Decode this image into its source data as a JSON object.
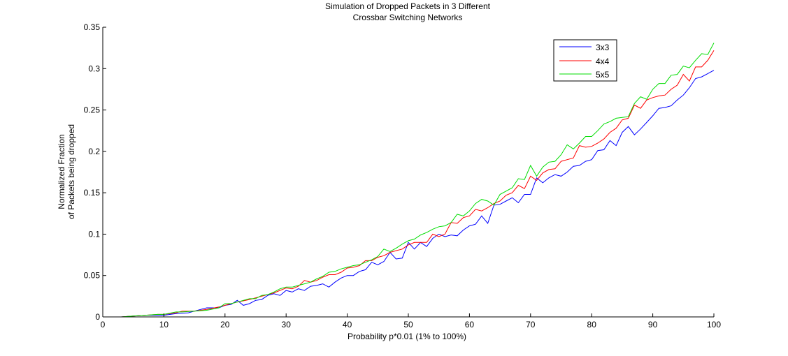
{
  "chart_data": {
    "type": "line",
    "title": "Simulation of Dropped Packets in 3 Different",
    "subtitle": "Crossbar Switching Networks",
    "xlabel": "Probability p*0.01 (1% to 100%)",
    "ylabel_lines": [
      "Normalized Fraction",
      "of Packets being dropped"
    ],
    "xlim": [
      0,
      100
    ],
    "ylim": [
      0,
      0.35
    ],
    "xticks": [
      0,
      10,
      20,
      30,
      40,
      50,
      60,
      70,
      80,
      90,
      100
    ],
    "yticks": [
      0,
      0.05,
      0.1,
      0.15,
      0.2,
      0.25,
      0.3,
      0.35
    ],
    "ytick_labels": [
      "0",
      "0.05",
      "0.1",
      "0.15",
      "0.2",
      "0.25",
      "0.3",
      "0.35"
    ],
    "grid": false,
    "legend_position": "top-right",
    "series": [
      {
        "name": "3x3",
        "color": "#0000ff",
        "points": [
          [
            1,
            0.0
          ],
          [
            3,
            0.0
          ],
          [
            5,
            0.001
          ],
          [
            7,
            0.002
          ],
          [
            8,
            0.002
          ],
          [
            10,
            0.002
          ],
          [
            12,
            0.004
          ],
          [
            14,
            0.005
          ],
          [
            16,
            0.009
          ],
          [
            17,
            0.011
          ],
          [
            19,
            0.011
          ],
          [
            20,
            0.014
          ],
          [
            21,
            0.015
          ],
          [
            22,
            0.02
          ],
          [
            23,
            0.014
          ],
          [
            24,
            0.016
          ],
          [
            25,
            0.02
          ],
          [
            26,
            0.021
          ],
          [
            27,
            0.026
          ],
          [
            28,
            0.028
          ],
          [
            29,
            0.026
          ],
          [
            30,
            0.032
          ],
          [
            31,
            0.03
          ],
          [
            32,
            0.034
          ],
          [
            33,
            0.032
          ],
          [
            34,
            0.037
          ],
          [
            35,
            0.038
          ],
          [
            36,
            0.04
          ],
          [
            37,
            0.036
          ],
          [
            38,
            0.042
          ],
          [
            39,
            0.047
          ],
          [
            40,
            0.05
          ],
          [
            41,
            0.05
          ],
          [
            42,
            0.055
          ],
          [
            43,
            0.057
          ],
          [
            44,
            0.066
          ],
          [
            45,
            0.063
          ],
          [
            46,
            0.067
          ],
          [
            47,
            0.078
          ],
          [
            48,
            0.07
          ],
          [
            49,
            0.071
          ],
          [
            50,
            0.09
          ],
          [
            51,
            0.082
          ],
          [
            52,
            0.09
          ],
          [
            53,
            0.085
          ],
          [
            54,
            0.095
          ],
          [
            55,
            0.1
          ],
          [
            56,
            0.097
          ],
          [
            57,
            0.099
          ],
          [
            58,
            0.098
          ],
          [
            59,
            0.105
          ],
          [
            60,
            0.11
          ],
          [
            61,
            0.112
          ],
          [
            62,
            0.122
          ],
          [
            63,
            0.113
          ],
          [
            64,
            0.135
          ],
          [
            65,
            0.136
          ],
          [
            66,
            0.14
          ],
          [
            67,
            0.144
          ],
          [
            68,
            0.138
          ],
          [
            69,
            0.148
          ],
          [
            70,
            0.148
          ],
          [
            71,
            0.168
          ],
          [
            72,
            0.162
          ],
          [
            73,
            0.168
          ],
          [
            74,
            0.172
          ],
          [
            75,
            0.17
          ],
          [
            76,
            0.175
          ],
          [
            77,
            0.182
          ],
          [
            78,
            0.183
          ],
          [
            79,
            0.188
          ],
          [
            80,
            0.19
          ],
          [
            81,
            0.201
          ],
          [
            82,
            0.202
          ],
          [
            83,
            0.213
          ],
          [
            84,
            0.207
          ],
          [
            85,
            0.223
          ],
          [
            86,
            0.23
          ],
          [
            87,
            0.22
          ],
          [
            88,
            0.227
          ],
          [
            89,
            0.235
          ],
          [
            90,
            0.243
          ],
          [
            91,
            0.252
          ],
          [
            92,
            0.253
          ],
          [
            93,
            0.255
          ],
          [
            94,
            0.262
          ],
          [
            95,
            0.268
          ],
          [
            96,
            0.277
          ],
          [
            97,
            0.288
          ],
          [
            98,
            0.29
          ],
          [
            99,
            0.294
          ],
          [
            100,
            0.298
          ]
        ]
      },
      {
        "name": "4x4",
        "color": "#ff0000",
        "points": [
          [
            1,
            0.0
          ],
          [
            3,
            0.0
          ],
          [
            5,
            0.001
          ],
          [
            7,
            0.002
          ],
          [
            9,
            0.003
          ],
          [
            10,
            0.003
          ],
          [
            12,
            0.005
          ],
          [
            13,
            0.007
          ],
          [
            15,
            0.007
          ],
          [
            17,
            0.009
          ],
          [
            19,
            0.012
          ],
          [
            20,
            0.014
          ],
          [
            22,
            0.018
          ],
          [
            24,
            0.021
          ],
          [
            26,
            0.025
          ],
          [
            28,
            0.029
          ],
          [
            30,
            0.035
          ],
          [
            31,
            0.034
          ],
          [
            32,
            0.037
          ],
          [
            33,
            0.044
          ],
          [
            34,
            0.042
          ],
          [
            35,
            0.044
          ],
          [
            36,
            0.048
          ],
          [
            37,
            0.051
          ],
          [
            38,
            0.051
          ],
          [
            39,
            0.054
          ],
          [
            40,
            0.059
          ],
          [
            41,
            0.06
          ],
          [
            42,
            0.062
          ],
          [
            43,
            0.068
          ],
          [
            44,
            0.068
          ],
          [
            45,
            0.072
          ],
          [
            46,
            0.074
          ],
          [
            47,
            0.078
          ],
          [
            48,
            0.08
          ],
          [
            49,
            0.082
          ],
          [
            50,
            0.087
          ],
          [
            51,
            0.09
          ],
          [
            52,
            0.09
          ],
          [
            53,
            0.09
          ],
          [
            54,
            0.1
          ],
          [
            55,
            0.097
          ],
          [
            56,
            0.1
          ],
          [
            57,
            0.114
          ],
          [
            58,
            0.113
          ],
          [
            59,
            0.12
          ],
          [
            60,
            0.122
          ],
          [
            61,
            0.13
          ],
          [
            62,
            0.128
          ],
          [
            63,
            0.132
          ],
          [
            64,
            0.137
          ],
          [
            65,
            0.14
          ],
          [
            66,
            0.147
          ],
          [
            67,
            0.15
          ],
          [
            68,
            0.159
          ],
          [
            69,
            0.155
          ],
          [
            70,
            0.17
          ],
          [
            71,
            0.165
          ],
          [
            72,
            0.174
          ],
          [
            73,
            0.178
          ],
          [
            74,
            0.179
          ],
          [
            75,
            0.188
          ],
          [
            76,
            0.19
          ],
          [
            77,
            0.192
          ],
          [
            78,
            0.207
          ],
          [
            79,
            0.205
          ],
          [
            80,
            0.206
          ],
          [
            81,
            0.21
          ],
          [
            82,
            0.215
          ],
          [
            83,
            0.223
          ],
          [
            84,
            0.228
          ],
          [
            85,
            0.238
          ],
          [
            86,
            0.24
          ],
          [
            87,
            0.256
          ],
          [
            88,
            0.252
          ],
          [
            89,
            0.262
          ],
          [
            90,
            0.265
          ],
          [
            91,
            0.267
          ],
          [
            92,
            0.268
          ],
          [
            93,
            0.275
          ],
          [
            94,
            0.28
          ],
          [
            95,
            0.293
          ],
          [
            96,
            0.285
          ],
          [
            97,
            0.302
          ],
          [
            98,
            0.302
          ],
          [
            99,
            0.31
          ],
          [
            100,
            0.322
          ]
        ]
      },
      {
        "name": "5x5",
        "color": "#00dd00",
        "points": [
          [
            1,
            0.0
          ],
          [
            3,
            0.0
          ],
          [
            5,
            0.001
          ],
          [
            7,
            0.002
          ],
          [
            9,
            0.003
          ],
          [
            10,
            0.003
          ],
          [
            12,
            0.006
          ],
          [
            13,
            0.006
          ],
          [
            15,
            0.007
          ],
          [
            17,
            0.008
          ],
          [
            19,
            0.011
          ],
          [
            20,
            0.016
          ],
          [
            21,
            0.016
          ],
          [
            22,
            0.018
          ],
          [
            23,
            0.02
          ],
          [
            24,
            0.022
          ],
          [
            25,
            0.022
          ],
          [
            26,
            0.026
          ],
          [
            27,
            0.027
          ],
          [
            28,
            0.03
          ],
          [
            29,
            0.034
          ],
          [
            30,
            0.036
          ],
          [
            31,
            0.036
          ],
          [
            32,
            0.038
          ],
          [
            33,
            0.04
          ],
          [
            34,
            0.042
          ],
          [
            35,
            0.046
          ],
          [
            36,
            0.049
          ],
          [
            37,
            0.054
          ],
          [
            38,
            0.055
          ],
          [
            39,
            0.058
          ],
          [
            40,
            0.06
          ],
          [
            41,
            0.062
          ],
          [
            42,
            0.063
          ],
          [
            43,
            0.066
          ],
          [
            44,
            0.069
          ],
          [
            45,
            0.073
          ],
          [
            46,
            0.082
          ],
          [
            47,
            0.079
          ],
          [
            48,
            0.083
          ],
          [
            49,
            0.088
          ],
          [
            50,
            0.092
          ],
          [
            51,
            0.094
          ],
          [
            52,
            0.099
          ],
          [
            53,
            0.102
          ],
          [
            54,
            0.106
          ],
          [
            55,
            0.109
          ],
          [
            56,
            0.11
          ],
          [
            57,
            0.114
          ],
          [
            58,
            0.124
          ],
          [
            59,
            0.122
          ],
          [
            60,
            0.128
          ],
          [
            61,
            0.137
          ],
          [
            62,
            0.142
          ],
          [
            63,
            0.14
          ],
          [
            64,
            0.135
          ],
          [
            65,
            0.148
          ],
          [
            66,
            0.152
          ],
          [
            67,
            0.156
          ],
          [
            68,
            0.167
          ],
          [
            69,
            0.166
          ],
          [
            70,
            0.183
          ],
          [
            71,
            0.17
          ],
          [
            72,
            0.181
          ],
          [
            73,
            0.187
          ],
          [
            74,
            0.188
          ],
          [
            75,
            0.196
          ],
          [
            76,
            0.208
          ],
          [
            77,
            0.203
          ],
          [
            78,
            0.21
          ],
          [
            79,
            0.218
          ],
          [
            80,
            0.218
          ],
          [
            81,
            0.225
          ],
          [
            82,
            0.233
          ],
          [
            83,
            0.236
          ],
          [
            84,
            0.24
          ],
          [
            85,
            0.241
          ],
          [
            86,
            0.242
          ],
          [
            87,
            0.258
          ],
          [
            88,
            0.266
          ],
          [
            89,
            0.263
          ],
          [
            90,
            0.275
          ],
          [
            91,
            0.282
          ],
          [
            92,
            0.282
          ],
          [
            93,
            0.292
          ],
          [
            94,
            0.293
          ],
          [
            95,
            0.303
          ],
          [
            96,
            0.301
          ],
          [
            97,
            0.31
          ],
          [
            98,
            0.318
          ],
          [
            99,
            0.317
          ],
          [
            100,
            0.331
          ]
        ]
      }
    ]
  }
}
